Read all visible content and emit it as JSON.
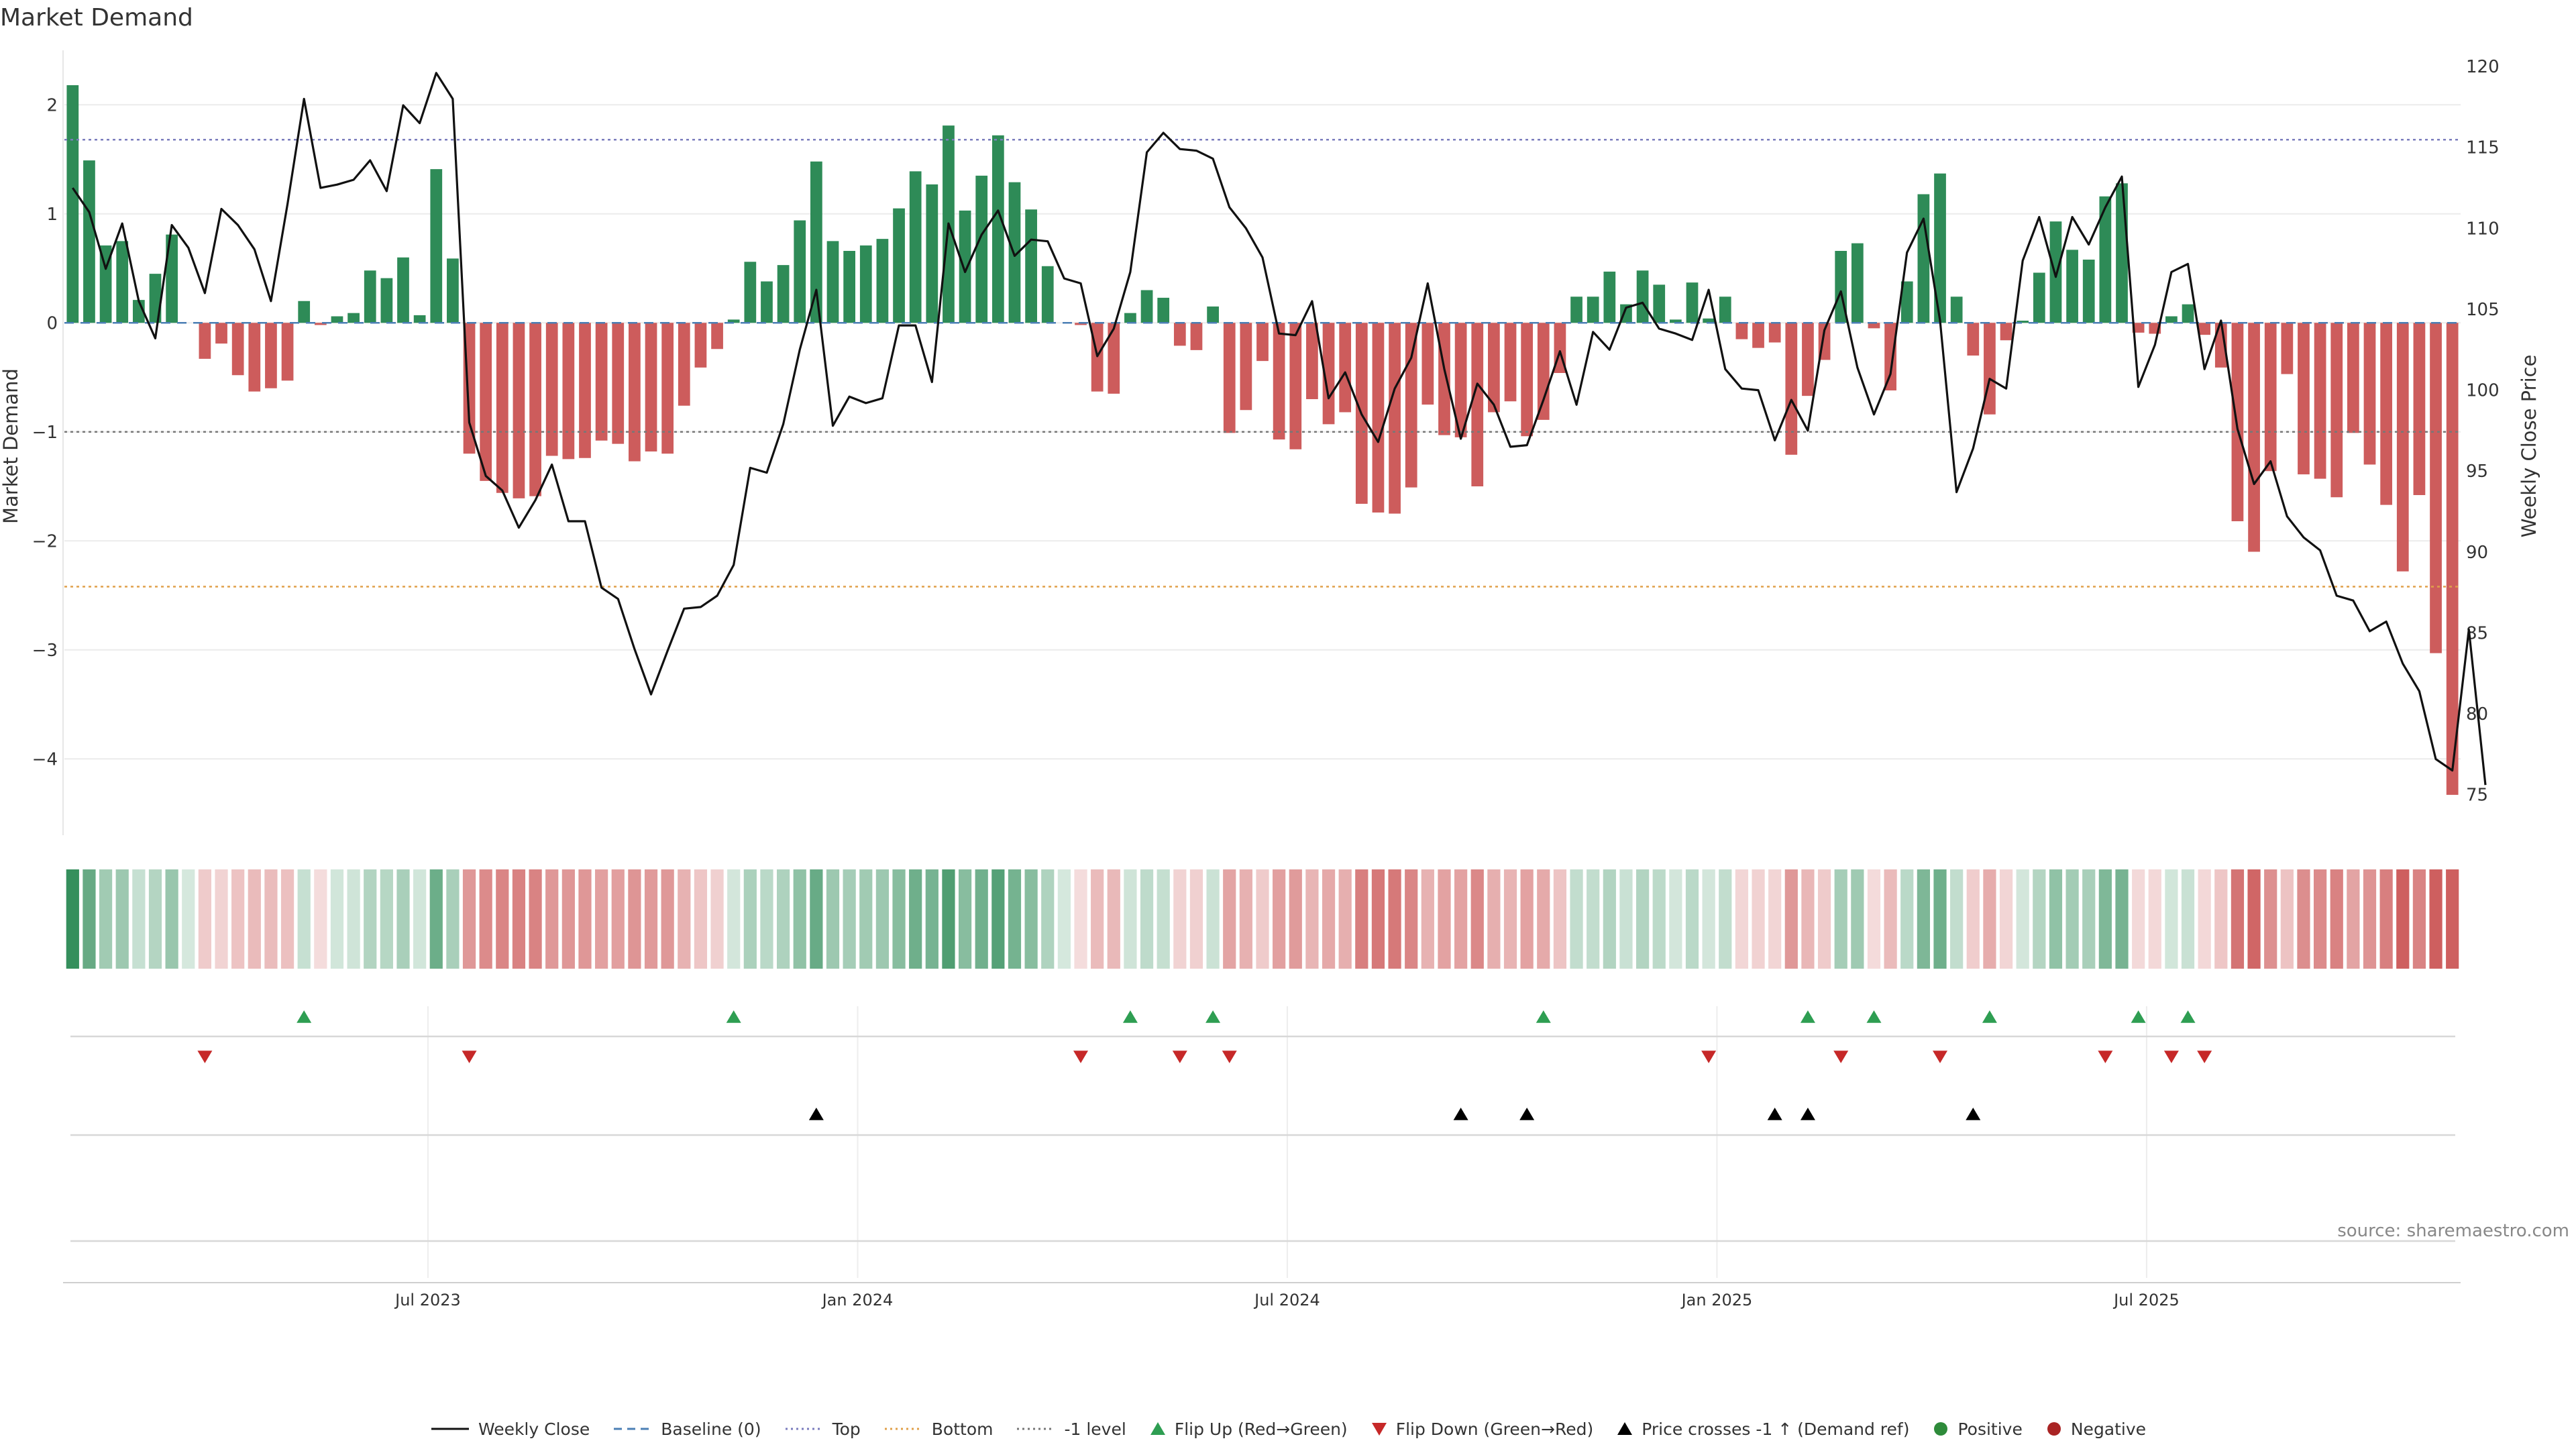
{
  "title": "Market Demand",
  "source": "source: sharemaestro.com",
  "chart_data": {
    "type": "bar",
    "title": "Market Demand",
    "ylabel_left": "Market Demand",
    "ylabel_right": "Weekly Close Price",
    "ylim_left": [
      -4.7,
      2.5
    ],
    "ylim_right": [
      72.5,
      121
    ],
    "yticks_left": [
      2,
      1,
      0,
      -1,
      -2,
      -3,
      -4
    ],
    "yticks_left_labels": [
      "2",
      "1",
      "0",
      "−1",
      "−2",
      "−3",
      "−4"
    ],
    "yticks_right": [
      120,
      115,
      110,
      105,
      100,
      95,
      90,
      85,
      80,
      75
    ],
    "xtick_labels": [
      "Jul 2023",
      "Jan 2024",
      "Jul 2024",
      "Jan 2025",
      "Jul 2025"
    ],
    "xtick_indices": [
      21.5,
      47.5,
      73.5,
      99.5,
      125.5
    ],
    "reference_lines": {
      "top": 1.68,
      "bottom": -2.42,
      "minus_one": -1.0,
      "baseline": 0
    },
    "demand": [
      2.18,
      1.49,
      0.71,
      0.75,
      0.21,
      0.45,
      0.81,
      0,
      -0.33,
      -0.19,
      -0.48,
      -0.63,
      -0.6,
      -0.53,
      0.2,
      -0.02,
      0.06,
      0.09,
      0.48,
      0.41,
      0.6,
      0.07,
      1.41,
      0.59,
      -1.2,
      -1.45,
      -1.56,
      -1.61,
      -1.59,
      -1.22,
      -1.25,
      -1.24,
      -1.08,
      -1.11,
      -1.27,
      -1.18,
      -1.2,
      -0.76,
      -0.41,
      -0.24,
      0.03,
      0.56,
      0.38,
      0.53,
      0.94,
      1.48,
      0.75,
      0.66,
      0.71,
      0.77,
      1.05,
      1.39,
      1.27,
      1.81,
      1.03,
      1.35,
      1.72,
      1.29,
      1.04,
      0.52,
      0,
      -0.02,
      -0.63,
      -0.65,
      0.09,
      0.3,
      0.23,
      -0.21,
      -0.25,
      0.15,
      -1.01,
      -0.8,
      -0.35,
      -1.07,
      -1.16,
      -0.7,
      -0.93,
      -0.82,
      -1.66,
      -1.74,
      -1.75,
      -1.51,
      -0.75,
      -1.03,
      -1.05,
      -1.5,
      -0.82,
      -0.72,
      -1.04,
      -0.89,
      -0.46,
      0.24,
      0.24,
      0.47,
      0.17,
      0.48,
      0.35,
      0.03,
      0.37,
      0.04,
      0.24,
      -0.15,
      -0.23,
      -0.18,
      -1.21,
      -0.67,
      -0.34,
      0.66,
      0.73,
      -0.05,
      -0.62,
      0.38,
      1.18,
      1.37,
      0.24,
      -0.3,
      -0.84,
      -0.16,
      0.02,
      0.46,
      0.93,
      0.67,
      0.58,
      1.16,
      1.28,
      -0.09,
      -0.1,
      0.06,
      0.17,
      -0.11,
      -0.41,
      -1.82,
      -2.1,
      -1.36,
      -0.47,
      -1.39,
      -1.43,
      -1.6,
      -1.01,
      -1.3,
      -1.67,
      -2.28,
      -1.58,
      -3.03,
      -4.33
    ],
    "weekly_close": [
      112.5,
      111,
      107.5,
      110.3,
      105.5,
      103.2,
      110.2,
      108.8,
      106,
      111.2,
      110.2,
      108.7,
      105.5,
      111.5,
      118,
      112.5,
      112.7,
      113,
      114.2,
      112.3,
      117.6,
      116.5,
      119.6,
      118,
      98,
      94.7,
      93.8,
      91.5,
      93.2,
      95.4,
      91.9,
      91.9,
      87.8,
      87.1,
      84,
      81.2,
      83.9,
      86.5,
      86.6,
      87.3,
      89.2,
      95.2,
      94.9,
      97.9,
      102.5,
      106.2,
      97.8,
      99.6,
      99.2,
      99.5,
      104,
      104,
      100.5,
      110.3,
      107.3,
      109.6,
      111.1,
      108.3,
      109.3,
      109.2,
      106.9,
      106.6,
      102.1,
      103.8,
      107.3,
      114.7,
      115.9,
      114.9,
      114.8,
      114.3,
      111.3,
      110,
      108.2,
      103.5,
      103.4,
      105.5,
      99.5,
      101.1,
      98.5,
      96.8,
      100.1,
      102,
      106.6,
      101.3,
      97,
      100.4,
      99.1,
      96.5,
      96.6,
      99.4,
      102.4,
      99.1,
      103.6,
      102.5,
      105.1,
      105.4,
      103.8,
      103.5,
      103.1,
      106.2,
      101.3,
      100.1,
      100,
      96.9,
      99.4,
      97.5,
      103.7,
      106.1,
      101.4,
      98.5,
      101,
      108.5,
      110.6,
      104.3,
      93.7,
      96.4,
      100.7,
      100.1,
      108,
      110.7,
      107,
      110.7,
      109,
      111.3,
      113.2,
      100.2,
      102.8,
      107.3,
      107.8,
      101.3,
      104.3,
      97.6,
      94.2,
      95.6,
      92.2,
      90.9,
      90.1,
      87.3,
      87,
      85.1,
      85.7,
      83.1,
      81.4,
      77.2,
      76.5,
      85.2,
      75.6
    ],
    "flip_up": [
      14,
      40,
      64,
      69,
      89,
      105,
      109,
      116,
      125,
      128
    ],
    "flip_down": [
      8,
      24,
      61,
      67,
      70,
      99,
      107,
      113,
      123,
      127,
      129
    ],
    "price_crosses_up": [
      45,
      84,
      88,
      103,
      105,
      115
    ],
    "legend": [
      {
        "label": "Weekly Close",
        "kind": "line",
        "style": "solid",
        "color": "#111111"
      },
      {
        "label": "Baseline (0)",
        "kind": "line",
        "style": "dashed",
        "color": "#4b7fb5"
      },
      {
        "label": "Top",
        "kind": "line",
        "style": "dotted",
        "color": "#7b7dbd"
      },
      {
        "label": "Bottom",
        "kind": "line",
        "style": "dotted",
        "color": "#e0a04a"
      },
      {
        "label": "-1 level",
        "kind": "line",
        "style": "dotted",
        "color": "#777777"
      },
      {
        "label": "Flip Up (Red→Green)",
        "kind": "triangle-up",
        "color": "#2e9e52"
      },
      {
        "label": "Flip Down (Green→Red)",
        "kind": "triangle-down",
        "color": "#c62828"
      },
      {
        "label": "Price crosses -1 ↑ (Demand ref)",
        "kind": "triangle-up",
        "color": "#000000"
      },
      {
        "label": "Positive",
        "kind": "circle",
        "color": "#2e8b3a"
      },
      {
        "label": "Negative",
        "kind": "circle",
        "color": "#a92424"
      }
    ],
    "colors": {
      "positive_bar": "#2e8b57",
      "negative_bar": "#cd5c5c",
      "price_line": "#111111",
      "top_line": "#7b7dbd",
      "bottom_line": "#e0a04a",
      "minus_one_line": "#777777",
      "baseline": "#4b7fb5",
      "flip_up": "#2e9e52",
      "flip_down": "#c62828",
      "cross_up": "#000000",
      "heat_positive": "#2e8b57",
      "heat_negative": "#cd5c5c"
    }
  }
}
